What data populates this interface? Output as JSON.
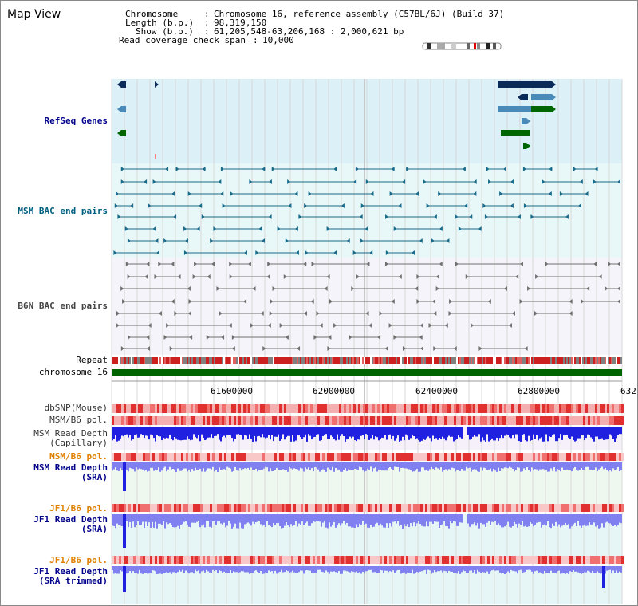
{
  "view": {
    "title": "Map View",
    "chromosome_label": "Chromosome",
    "chromosome_value": "Chromosome 16, reference assembly (C57BL/6J) (Build 37)",
    "length_label": "Length (b.p.)",
    "length_value": "98,319,150",
    "show_label": "Show (b.p.)",
    "show_value": "61,205,548-63,206,168 : 2,000,621 bp",
    "coverage_label": "Read coverage check span",
    "coverage_value": "10,000"
  },
  "tracks": {
    "refseq": "RefSeq Genes",
    "msm_bac": "MSM BAC end pairs",
    "b6n_bac": "B6N BAC end pairs",
    "repeat": "Repeat",
    "chromosome": "chromosome 16",
    "dbsnp": "dbSNP(Mouse)",
    "msm_b6_pol": "MSM/B6 pol.",
    "msm_read_depth_cap": "MSM Read Depth\n(Capillary)",
    "msm_b6_pol_sra": "MSM/B6 pol.",
    "msm_read_depth_sra": "MSM Read Depth\n(SRA)",
    "jf1_b6_pol": "JF1/B6 pol.",
    "jf1_read_depth_sra": "JF1 Read Depth\n(SRA)",
    "jf1_b6_pol_trim": "JF1/B6 pol.",
    "jf1_read_depth_trim": "JF1 Read Depth\n(SRA trimmed)"
  },
  "axis": {
    "ticks": [
      "61600000",
      "62000000",
      "62400000",
      "62800000",
      "632"
    ]
  },
  "colors": {
    "refseq_bg": "#dcf0f8",
    "bac_bg": "#e8f8f8",
    "b6n_bg": "#f4f4fa",
    "sra_bg": "#eef8ee",
    "jf1_bg": "#e6f6f6",
    "chrom_green": "#006400",
    "gene_navy": "#0a2a5a",
    "gene_steel": "#4a8ab8",
    "gene_green": "#006600",
    "bac_teal": "#1a6a8a",
    "b6n_gray": "#707070",
    "depth_blue": "#2020e0",
    "depth_light": "#8080f0",
    "pol_red": "#e03030",
    "pol_pink": "#f4b0b0"
  }
}
